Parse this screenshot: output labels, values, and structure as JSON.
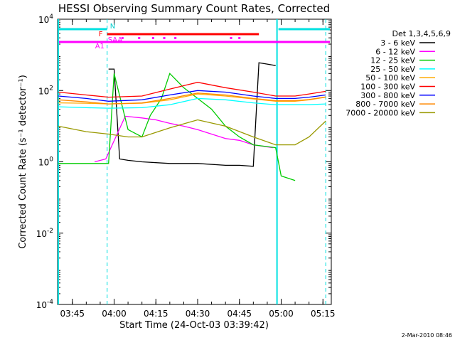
{
  "chart_data": {
    "type": "line",
    "title": "HESSI Observing Summary Count Rates, Corrected",
    "xlabel": "Start Time (24-Oct-03 03:39:42)",
    "ylabel": "Corrected Count Rate (s⁻¹ detector⁻¹)",
    "y_scale": "log",
    "ylim": [
      0.0001,
      10000
    ],
    "xlim_minutes": [
      "03:39:42",
      "05:18:00"
    ],
    "x_ticks": [
      "03:45",
      "04:00",
      "04:15",
      "04:30",
      "04:45",
      "05:00",
      "05:15"
    ],
    "y_ticks": [
      {
        "mantissa": "10",
        "exp": "-4",
        "value": 0.0001
      },
      {
        "mantissa": "10",
        "exp": "-2",
        "value": 0.01
      },
      {
        "mantissa": "10",
        "exp": "0",
        "value": 1
      },
      {
        "mantissa": "10",
        "exp": "2",
        "value": 100
      },
      {
        "mantissa": "10",
        "exp": "4",
        "value": 10000
      }
    ],
    "legend_title": "Det 1,3,4,5,6,9",
    "legend_position": "right",
    "flag_labels": {
      "N": "N",
      "F": "F",
      "SAA": "SAA",
      "A1": "A1"
    },
    "series": [
      {
        "name": "3 - 6 keV",
        "color": "#000000",
        "x": [
          "03:58",
          "04:00",
          "04:02",
          "04:05",
          "04:10",
          "04:20",
          "04:30",
          "04:40",
          "04:45",
          "04:50",
          "04:52",
          "04:55",
          "04:58"
        ],
        "values": [
          400,
          400,
          1.2,
          1.1,
          1.0,
          0.9,
          0.9,
          0.8,
          0.8,
          0.75,
          600,
          550,
          500
        ]
      },
      {
        "name": "6 - 12 keV",
        "color": "#ff00ff",
        "x": [
          "03:53",
          "03:57",
          "04:04",
          "04:10",
          "04:15",
          "04:20",
          "04:25",
          "04:30",
          "04:35",
          "04:40",
          "04:45",
          "04:50",
          "04:57"
        ],
        "values": [
          1,
          1.2,
          19,
          17,
          15,
          12,
          10,
          8,
          6,
          4.5,
          4,
          3,
          2.5
        ]
      },
      {
        "name": "12 - 25 keV",
        "color": "#00cc00",
        "x": [
          "03:40",
          "03:58",
          "04:00",
          "04:05",
          "04:10",
          "04:13",
          "04:17",
          "04:20",
          "04:25",
          "04:30",
          "04:35",
          "04:40",
          "04:45",
          "04:50",
          "04:58",
          "05:00",
          "05:05"
        ],
        "values": [
          0.9,
          0.9,
          300,
          8,
          5,
          20,
          60,
          300,
          120,
          60,
          30,
          10,
          5,
          3,
          2.5,
          0.4,
          0.3
        ]
      },
      {
        "name": "25 - 50 keV",
        "color": "#00ffff",
        "x": [
          "03:40",
          "03:50",
          "03:58",
          "04:10",
          "04:20",
          "04:30",
          "04:40",
          "04:50",
          "04:58",
          "05:05",
          "05:10",
          "05:16"
        ],
        "values": [
          35,
          33,
          32,
          33,
          40,
          60,
          55,
          45,
          40,
          40,
          40,
          42
        ]
      },
      {
        "name": "50 - 100 keV",
        "color": "#ffaa00",
        "x": [
          "03:40",
          "03:50",
          "03:58",
          "04:10",
          "04:20",
          "04:30",
          "04:40",
          "04:50",
          "04:58",
          "05:05",
          "05:10",
          "05:16"
        ],
        "values": [
          45,
          44,
          42,
          44,
          55,
          80,
          70,
          58,
          50,
          50,
          55,
          65
        ]
      },
      {
        "name": "100 - 300 keV",
        "color": "#ff0000",
        "x": [
          "03:40",
          "03:50",
          "03:58",
          "04:10",
          "04:20",
          "04:30",
          "04:40",
          "04:50",
          "04:58",
          "05:05",
          "05:10",
          "05:16"
        ],
        "values": [
          90,
          75,
          65,
          70,
          110,
          170,
          120,
          90,
          70,
          70,
          80,
          95
        ]
      },
      {
        "name": "300 - 800 keV",
        "color": "#0000ff",
        "x": [
          "03:40",
          "03:50",
          "03:58",
          "04:10",
          "04:20",
          "04:30",
          "04:40",
          "04:50",
          "04:58",
          "05:05",
          "05:10",
          "05:16"
        ],
        "values": [
          70,
          60,
          50,
          55,
          75,
          100,
          90,
          70,
          60,
          60,
          65,
          75
        ]
      },
      {
        "name": "800 - 7000 keV",
        "color": "#ff8800",
        "x": [
          "03:40",
          "03:50",
          "03:58",
          "04:10",
          "04:20",
          "04:30",
          "04:40",
          "04:50",
          "04:58",
          "05:05",
          "05:10",
          "05:16"
        ],
        "values": [
          55,
          48,
          42,
          45,
          60,
          85,
          75,
          60,
          52,
          52,
          56,
          66
        ]
      },
      {
        "name": "7000 - 20000 keV",
        "color": "#999900",
        "x": [
          "03:40",
          "03:50",
          "03:58",
          "04:05",
          "04:10",
          "04:20",
          "04:30",
          "04:40",
          "04:50",
          "04:58",
          "05:05",
          "05:10",
          "05:16"
        ],
        "values": [
          10,
          7,
          6,
          5,
          5,
          9,
          15,
          10,
          5,
          3,
          3,
          5,
          14
        ]
      }
    ],
    "footer": "2-Mar-2010 08:46"
  }
}
